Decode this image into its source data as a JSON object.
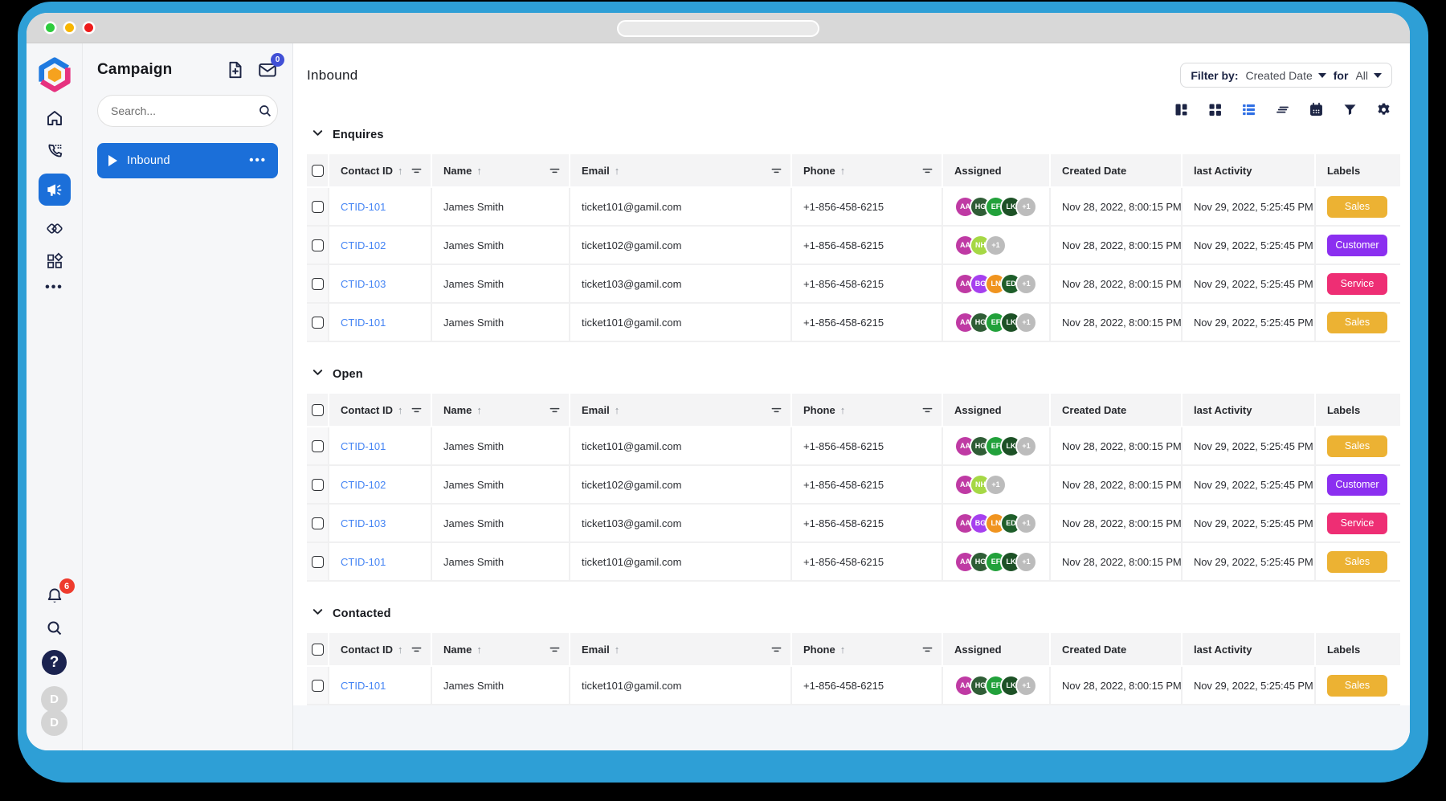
{
  "window": {
    "traffic_lights": [
      "green",
      "yellow",
      "red"
    ]
  },
  "rail": {
    "nav_icons": [
      "home",
      "calls",
      "campaigns",
      "deals",
      "apps",
      "more"
    ],
    "active_icon": "campaigns",
    "notification_count": "6",
    "help_glyph": "?",
    "avatars": [
      "D",
      "D"
    ],
    "badge_color": "#EE3B2D"
  },
  "campaign": {
    "title": "Campaign",
    "header_icons": [
      "new-campaign",
      "mail"
    ],
    "mail_badge": "0",
    "search_placeholder": "Search...",
    "items": [
      {
        "label": "Inbound",
        "active": true
      }
    ]
  },
  "header": {
    "page_title": "Inbound",
    "filter_by_label": "Filter by:",
    "filter_value": "Created Date",
    "for_label": "for",
    "range_value": "All",
    "view_icons": [
      "board-view",
      "grid-view",
      "list-view",
      "rows-view",
      "calendar",
      "filter",
      "settings"
    ],
    "active_view": "list-view",
    "active_view_color": "#2F6FE4"
  },
  "table": {
    "columns": [
      {
        "type": "checkbox",
        "label": ""
      },
      {
        "label": "Contact ID",
        "sort": true,
        "filter": true
      },
      {
        "label": "Name",
        "sort": true,
        "filter": true
      },
      {
        "label": "Email",
        "sort": true,
        "filter": true
      },
      {
        "label": "Phone",
        "sort": true,
        "filter": true
      },
      {
        "label": "Assigned"
      },
      {
        "label": "Created Date"
      },
      {
        "label": "last Activity"
      },
      {
        "label": "Labels"
      }
    ]
  },
  "label_colors": {
    "Sales": "#ECB233",
    "Customer": "#8B2FF0",
    "Service": "#EE2E74"
  },
  "avatar_colors": {
    "AA": "#BF3AA4",
    "HG": "#2F5D36",
    "EF": "#22A13B",
    "LK": "#1D5126",
    "NH": "#A6D845",
    "BG": "#A640EF",
    "LN": "#F0941F",
    "ED": "#1E5E2A",
    "+1": "#BCBCBC"
  },
  "sections": [
    {
      "title": "Enquires",
      "rows": [
        {
          "id": "CTID-101",
          "name": "James Smith",
          "email": "ticket101@gamil.com",
          "phone": "+1-856-458-6215",
          "assigned": [
            "AA",
            "HG",
            "EF",
            "LK",
            "+1"
          ],
          "created": "Nov 28, 2022, 8:00:15 PM",
          "last_activity": "Nov 29, 2022, 5:25:45 PM",
          "label": "Sales"
        },
        {
          "id": "CTID-102",
          "name": "James Smith",
          "email": "ticket102@gamil.com",
          "phone": "+1-856-458-6215",
          "assigned": [
            "AA",
            "NH",
            "+1"
          ],
          "created": "Nov 28, 2022, 8:00:15 PM",
          "last_activity": "Nov 29, 2022, 5:25:45 PM",
          "label": "Customer"
        },
        {
          "id": "CTID-103",
          "name": "James Smith",
          "email": "ticket103@gamil.com",
          "phone": "+1-856-458-6215",
          "assigned": [
            "AA",
            "BG",
            "LN",
            "ED",
            "+1"
          ],
          "created": "Nov 28, 2022, 8:00:15 PM",
          "last_activity": "Nov 29, 2022, 5:25:45 PM",
          "label": "Service"
        },
        {
          "id": "CTID-101",
          "name": "James Smith",
          "email": "ticket101@gamil.com",
          "phone": "+1-856-458-6215",
          "assigned": [
            "AA",
            "HG",
            "EF",
            "LK",
            "+1"
          ],
          "created": "Nov 28, 2022, 8:00:15 PM",
          "last_activity": "Nov 29, 2022, 5:25:45 PM",
          "label": "Sales"
        }
      ]
    },
    {
      "title": "Open",
      "rows": [
        {
          "id": "CTID-101",
          "name": "James Smith",
          "email": "ticket101@gamil.com",
          "phone": "+1-856-458-6215",
          "assigned": [
            "AA",
            "HG",
            "EF",
            "LK",
            "+1"
          ],
          "created": "Nov 28, 2022, 8:00:15 PM",
          "last_activity": "Nov 29, 2022, 5:25:45 PM",
          "label": "Sales"
        },
        {
          "id": "CTID-102",
          "name": "James Smith",
          "email": "ticket102@gamil.com",
          "phone": "+1-856-458-6215",
          "assigned": [
            "AA",
            "NH",
            "+1"
          ],
          "created": "Nov 28, 2022, 8:00:15 PM",
          "last_activity": "Nov 29, 2022, 5:25:45 PM",
          "label": "Customer"
        },
        {
          "id": "CTID-103",
          "name": "James Smith",
          "email": "ticket103@gamil.com",
          "phone": "+1-856-458-6215",
          "assigned": [
            "AA",
            "BG",
            "LN",
            "ED",
            "+1"
          ],
          "created": "Nov 28, 2022, 8:00:15 PM",
          "last_activity": "Nov 29, 2022, 5:25:45 PM",
          "label": "Service"
        },
        {
          "id": "CTID-101",
          "name": "James Smith",
          "email": "ticket101@gamil.com",
          "phone": "+1-856-458-6215",
          "assigned": [
            "AA",
            "HG",
            "EF",
            "LK",
            "+1"
          ],
          "created": "Nov 28, 2022, 8:00:15 PM",
          "last_activity": "Nov 29, 2022, 5:25:45 PM",
          "label": "Sales"
        }
      ]
    },
    {
      "title": "Contacted",
      "rows": [
        {
          "id": "CTID-101",
          "name": "James Smith",
          "email": "ticket101@gamil.com",
          "phone": "+1-856-458-6215",
          "assigned": [
            "AA",
            "HG",
            "EF",
            "LK",
            "+1"
          ],
          "created": "Nov 28, 2022, 8:00:15 PM",
          "last_activity": "Nov 29, 2022, 5:25:45 PM",
          "label": "Sales"
        }
      ]
    }
  ]
}
